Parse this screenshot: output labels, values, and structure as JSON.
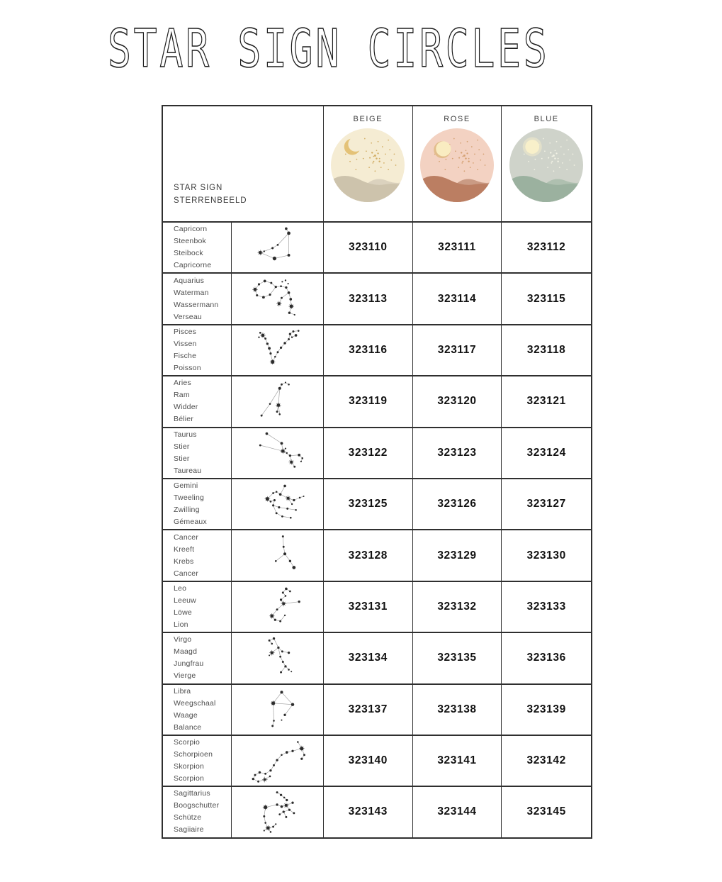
{
  "page": {
    "title": "STAR SIGN CIRCLES"
  },
  "table": {
    "row_header": {
      "line1": "STAR SIGN",
      "line2": "STERRENBEELD"
    },
    "columns": [
      {
        "label": "BEIGE",
        "icon": "beige-circle-icon",
        "palette": {
          "bg": "#f5ecd3",
          "moon": "#e4c277",
          "moon_style": "crescent",
          "moon_rim": "#e4c277",
          "hill_back": "#dbd2be",
          "hill_front": "#cdc3ac",
          "stars": "#d2ae66"
        }
      },
      {
        "label": "ROSE",
        "icon": "rose-circle-icon",
        "palette": {
          "bg": "#f3d2c2",
          "moon": "#f9ecc1",
          "moon_style": "rim",
          "moon_rim": "#e2bd8c",
          "hill_back": "#ca9b84",
          "hill_front": "#bb7e62",
          "stars": "#d5a274"
        }
      },
      {
        "label": "BLUE",
        "icon": "blue-circle-icon",
        "palette": {
          "bg": "#cfd3ca",
          "moon": "#f8f0ca",
          "moon_style": "glow",
          "moon_rim": "#f8f0ca",
          "hill_back": "#afc0b0",
          "hill_front": "#9bb19f",
          "stars": "#f1f1e4"
        }
      }
    ],
    "rows": [
      {
        "sign": "capricorn",
        "icon": "capricorn-constellation-icon",
        "names": [
          "Capricorn",
          "Steenbok",
          "Steibock",
          "Capricorne"
        ],
        "codes": [
          "323110",
          "323111",
          "323112"
        ]
      },
      {
        "sign": "aquarius",
        "icon": "aquarius-constellation-icon",
        "names": [
          "Aquarius",
          "Waterman",
          "Wassermann",
          "Verseau"
        ],
        "codes": [
          "323113",
          "323114",
          "323115"
        ]
      },
      {
        "sign": "pisces",
        "icon": "pisces-constellation-icon",
        "names": [
          "Pisces",
          "Vissen",
          "Fische",
          "Poisson"
        ],
        "codes": [
          "323116",
          "323117",
          "323118"
        ]
      },
      {
        "sign": "aries",
        "icon": "aries-constellation-icon",
        "names": [
          "Aries",
          "Ram",
          "Widder",
          "Bélier"
        ],
        "codes": [
          "323119",
          "323120",
          "323121"
        ]
      },
      {
        "sign": "taurus",
        "icon": "taurus-constellation-icon",
        "names": [
          "Taurus",
          "Stier",
          "Stier",
          "Taureau"
        ],
        "codes": [
          "323122",
          "323123",
          "323124"
        ]
      },
      {
        "sign": "gemini",
        "icon": "gemini-constellation-icon",
        "names": [
          "Gemini",
          "Tweeling",
          "Zwilling",
          "Gémeaux"
        ],
        "codes": [
          "323125",
          "323126",
          "323127"
        ]
      },
      {
        "sign": "cancer",
        "icon": "cancer-constellation-icon",
        "names": [
          "Cancer",
          "Kreeft",
          "Krebs",
          "Cancer"
        ],
        "codes": [
          "323128",
          "323129",
          "323130"
        ]
      },
      {
        "sign": "leo",
        "icon": "leo-constellation-icon",
        "names": [
          "Leo",
          "Leeuw",
          "Löwe",
          "Lion"
        ],
        "codes": [
          "323131",
          "323132",
          "323133"
        ]
      },
      {
        "sign": "virgo",
        "icon": "virgo-constellation-icon",
        "names": [
          "Virgo",
          "Maagd",
          "Jungfrau",
          "Vierge"
        ],
        "codes": [
          "323134",
          "323135",
          "323136"
        ]
      },
      {
        "sign": "libra",
        "icon": "libra-constellation-icon",
        "names": [
          "Libra",
          "Weegschaal",
          "Waage",
          "Balance"
        ],
        "codes": [
          "323137",
          "323138",
          "323139"
        ]
      },
      {
        "sign": "scorpio",
        "icon": "scorpio-constellation-icon",
        "names": [
          "Scorpio",
          "Schorpioen",
          "Skorpion",
          "Scorpion"
        ],
        "codes": [
          "323140",
          "323141",
          "323142"
        ]
      },
      {
        "sign": "sagittarius",
        "icon": "sagittarius-constellation-icon",
        "names": [
          "Sagittarius",
          "Boogschutter",
          "Schütze",
          "Sagiiaire"
        ],
        "codes": [
          "323143",
          "323144",
          "323145"
        ]
      }
    ]
  }
}
